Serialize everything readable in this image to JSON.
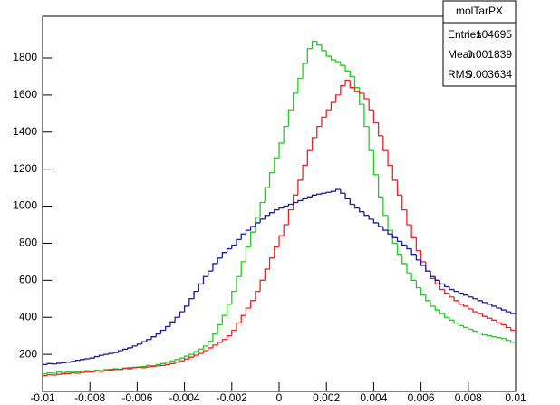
{
  "chart_data": {
    "type": "histogram",
    "bins": [
      -0.01,
      -0.0098,
      -0.0096,
      -0.0094,
      -0.0092,
      -0.009,
      -0.0088,
      -0.0086,
      -0.0084,
      -0.0082,
      -0.008,
      -0.0078,
      -0.0076,
      -0.0074,
      -0.0072,
      -0.007,
      -0.0068,
      -0.0066,
      -0.0064,
      -0.0062,
      -0.006,
      -0.0058,
      -0.0056,
      -0.0054,
      -0.0052,
      -0.005,
      -0.0048,
      -0.0046,
      -0.0044,
      -0.0042,
      -0.004,
      -0.0038,
      -0.0036,
      -0.0034,
      -0.0032,
      -0.003,
      -0.0028,
      -0.0026,
      -0.0024,
      -0.0022,
      -0.002,
      -0.0018,
      -0.0016,
      -0.0014,
      -0.0012,
      -0.001,
      -0.0008,
      -0.0006,
      -0.0004,
      -0.0002,
      0,
      0.0002,
      0.0004,
      0.0006,
      0.0008,
      0.001,
      0.0012,
      0.0014,
      0.0016,
      0.0018,
      0.002,
      0.0022,
      0.0024,
      0.0026,
      0.0028,
      0.003,
      0.0032,
      0.0034,
      0.0036,
      0.0038,
      0.004,
      0.0042,
      0.0044,
      0.0046,
      0.0048,
      0.005,
      0.0052,
      0.0054,
      0.0056,
      0.0058,
      0.006,
      0.0062,
      0.0064,
      0.0066,
      0.0068,
      0.007,
      0.0072,
      0.0074,
      0.0076,
      0.0078,
      0.008,
      0.0082,
      0.0084,
      0.0086,
      0.0088,
      0.009,
      0.0092,
      0.0094,
      0.0096,
      0.0098,
      0.01
    ],
    "series": [
      {
        "color": "#22cc22",
        "values": [
          95,
          100,
          98,
          105,
          102,
          104,
          108,
          106,
          110,
          112,
          110,
          115,
          112,
          118,
          120,
          122,
          118,
          125,
          128,
          130,
          132,
          135,
          140,
          138,
          145,
          150,
          158,
          165,
          172,
          180,
          190,
          200,
          215,
          228,
          245,
          270,
          310,
          360,
          410,
          470,
          540,
          620,
          700,
          780,
          860,
          940,
          1020,
          1100,
          1180,
          1260,
          1340,
          1430,
          1520,
          1610,
          1690,
          1770,
          1850,
          1890,
          1870,
          1840,
          1810,
          1790,
          1780,
          1760,
          1730,
          1700,
          1640,
          1550,
          1430,
          1300,
          1170,
          1050,
          950,
          870,
          800,
          740,
          690,
          640,
          600,
          560,
          520,
          490,
          460,
          440,
          420,
          400,
          385,
          370,
          355,
          345,
          335,
          325,
          315,
          305,
          300,
          295,
          290,
          285,
          275,
          265
        ]
      },
      {
        "color": "#ee2222",
        "values": [
          85,
          90,
          88,
          92,
          95,
          96,
          100,
          98,
          102,
          104,
          105,
          110,
          108,
          112,
          115,
          118,
          120,
          125,
          122,
          128,
          130,
          128,
          132,
          135,
          138,
          140,
          145,
          150,
          158,
          165,
          175,
          185,
          195,
          205,
          220,
          235,
          250,
          265,
          280,
          300,
          330,
          370,
          410,
          450,
          490,
          540,
          600,
          660,
          720,
          780,
          840,
          900,
          980,
          1060,
          1140,
          1220,
          1300,
          1370,
          1430,
          1480,
          1520,
          1560,
          1600,
          1650,
          1680,
          1640,
          1620,
          1610,
          1580,
          1520,
          1450,
          1380,
          1300,
          1220,
          1140,
          1060,
          980,
          900,
          830,
          760,
          700,
          650,
          610,
          580,
          550,
          530,
          510,
          490,
          470,
          460,
          445,
          430,
          420,
          405,
          395,
          385,
          370,
          360,
          345,
          330
        ]
      },
      {
        "color": "#1a1a99",
        "values": [
          145,
          150,
          148,
          152,
          155,
          158,
          162,
          168,
          172,
          176,
          180,
          188,
          195,
          200,
          205,
          210,
          220,
          228,
          235,
          245,
          255,
          268,
          280,
          295,
          310,
          330,
          350,
          375,
          400,
          430,
          460,
          500,
          540,
          580,
          620,
          650,
          690,
          720,
          750,
          770,
          790,
          820,
          850,
          870,
          890,
          910,
          930,
          950,
          965,
          980,
          990,
          1000,
          1010,
          1020,
          1030,
          1040,
          1050,
          1060,
          1065,
          1070,
          1075,
          1080,
          1090,
          1070,
          1040,
          1010,
          990,
          970,
          950,
          930,
          910,
          890,
          870,
          850,
          830,
          810,
          790,
          770,
          740,
          710,
          680,
          650,
          620,
          600,
          580,
          565,
          550,
          540,
          530,
          520,
          510,
          500,
          490,
          480,
          470,
          460,
          450,
          440,
          430,
          420
        ]
      }
    ],
    "xlim": [
      -0.01,
      0.01
    ],
    "xticks": [
      -0.01,
      -0.008,
      -0.006,
      -0.004,
      -0.002,
      0,
      0.002,
      0.004,
      0.006,
      0.008,
      0.01
    ],
    "ylim": [
      0,
      2025
    ],
    "yticks": [
      200,
      400,
      600,
      800,
      1000,
      1200,
      1400,
      1600,
      1800
    ],
    "stats": {
      "title": "molTarPX",
      "rows": [
        [
          "Entries",
          "104695"
        ],
        [
          "Mean",
          "0.001839"
        ],
        [
          "RMS",
          "0.003634"
        ]
      ]
    }
  }
}
